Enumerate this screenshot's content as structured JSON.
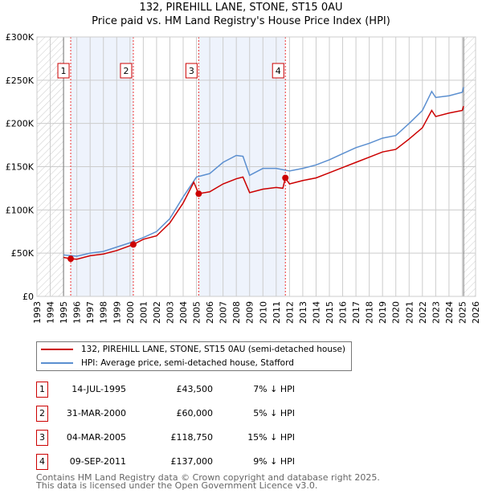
{
  "title": "132, PIREHILL LANE, STONE, ST15 0AU",
  "subtitle": "Price paid vs. HM Land Registry's House Price Index (HPI)",
  "chart_data": {
    "type": "line",
    "xlim": [
      1993,
      2026
    ],
    "ylim": [
      0,
      300000
    ],
    "x_ticks": [
      "1993",
      "1994",
      "1995",
      "1996",
      "1997",
      "1998",
      "1999",
      "2000",
      "2001",
      "2002",
      "2003",
      "2004",
      "2005",
      "2006",
      "2007",
      "2008",
      "2009",
      "2010",
      "2011",
      "2012",
      "2013",
      "2014",
      "2015",
      "2016",
      "2017",
      "2018",
      "2019",
      "2020",
      "2021",
      "2022",
      "2023",
      "2024",
      "2025",
      "2026"
    ],
    "y_ticks": [
      {
        "v": 0,
        "label": "£0"
      },
      {
        "v": 50000,
        "label": "£50K"
      },
      {
        "v": 100000,
        "label": "£100K"
      },
      {
        "v": 150000,
        "label": "£150K"
      },
      {
        "v": 200000,
        "label": "£200K"
      },
      {
        "v": 250000,
        "label": "£250K"
      },
      {
        "v": 300000,
        "label": "£300K"
      }
    ],
    "hatched_ranges": [
      [
        1993,
        1995
      ],
      [
        2025.1,
        2026
      ]
    ],
    "shaded_ranges": [
      [
        1995.54,
        2000.25
      ],
      [
        2005.17,
        2011.69
      ]
    ],
    "series": [
      {
        "name": "132, PIREHILL LANE, STONE, ST15 0AU (semi-detached house)",
        "color": "#cc0000",
        "x": [
          1995,
          1995.54,
          1996,
          1997,
          1998,
          1999,
          2000.25,
          2001,
          2002,
          2003,
          2004,
          2004.8,
          2005.17,
          2006,
          2007,
          2008,
          2008.5,
          2009,
          2010,
          2011,
          2011.5,
          2011.69,
          2012,
          2013,
          2014,
          2015,
          2016,
          2017,
          2018,
          2019,
          2020,
          2021,
          2022,
          2022.7,
          2023,
          2024,
          2025,
          2025.1
        ],
        "y": [
          45000,
          43500,
          43000,
          47000,
          49000,
          53000,
          60000,
          66000,
          70000,
          85000,
          108000,
          132000,
          118750,
          121000,
          130000,
          136000,
          138000,
          120000,
          124000,
          126000,
          125000,
          137000,
          130000,
          134000,
          137000,
          143000,
          149000,
          155000,
          161000,
          167000,
          170000,
          182000,
          195000,
          215000,
          208000,
          212000,
          215000,
          220000
        ]
      },
      {
        "name": "HPI: Average price, semi-detached house, Stafford",
        "color": "#5b8fd0",
        "x": [
          1995,
          1996,
          1997,
          1998,
          1999,
          2000,
          2001,
          2002,
          2003,
          2004,
          2005,
          2006,
          2007,
          2008,
          2008.5,
          2009,
          2010,
          2011,
          2012,
          2013,
          2014,
          2015,
          2016,
          2017,
          2018,
          2019,
          2020,
          2021,
          2022,
          2022.7,
          2023,
          2024,
          2025,
          2025.1
        ],
        "y": [
          48000,
          46500,
          50000,
          52000,
          57000,
          62000,
          68000,
          75000,
          90000,
          115000,
          138000,
          142000,
          155000,
          163000,
          162000,
          140000,
          148000,
          148000,
          145000,
          148000,
          152000,
          158000,
          165000,
          172000,
          177000,
          183000,
          186000,
          200000,
          215000,
          237000,
          230000,
          232000,
          236000,
          242000
        ]
      }
    ],
    "sales": [
      {
        "n": "1",
        "x": 1995.54,
        "y": 43500
      },
      {
        "n": "2",
        "x": 2000.25,
        "y": 60000
      },
      {
        "n": "3",
        "x": 2005.17,
        "y": 118750
      },
      {
        "n": "4",
        "x": 2011.69,
        "y": 137000
      }
    ]
  },
  "legend": [
    "132, PIREHILL LANE, STONE, ST15 0AU (semi-detached house)",
    "HPI: Average price, semi-detached house, Stafford"
  ],
  "table": [
    {
      "n": "1",
      "date": "14-JUL-1995",
      "price": "£43,500",
      "hpi": "7% ↓ HPI"
    },
    {
      "n": "2",
      "date": "31-MAR-2000",
      "price": "£60,000",
      "hpi": "5% ↓ HPI"
    },
    {
      "n": "3",
      "date": "04-MAR-2005",
      "price": "£118,750",
      "hpi": "15% ↓ HPI"
    },
    {
      "n": "4",
      "date": "09-SEP-2011",
      "price": "£137,000",
      "hpi": "9% ↓ HPI"
    }
  ],
  "footer": [
    "Contains HM Land Registry data © Crown copyright and database right 2025.",
    "This data is licensed under the Open Government Licence v3.0."
  ]
}
